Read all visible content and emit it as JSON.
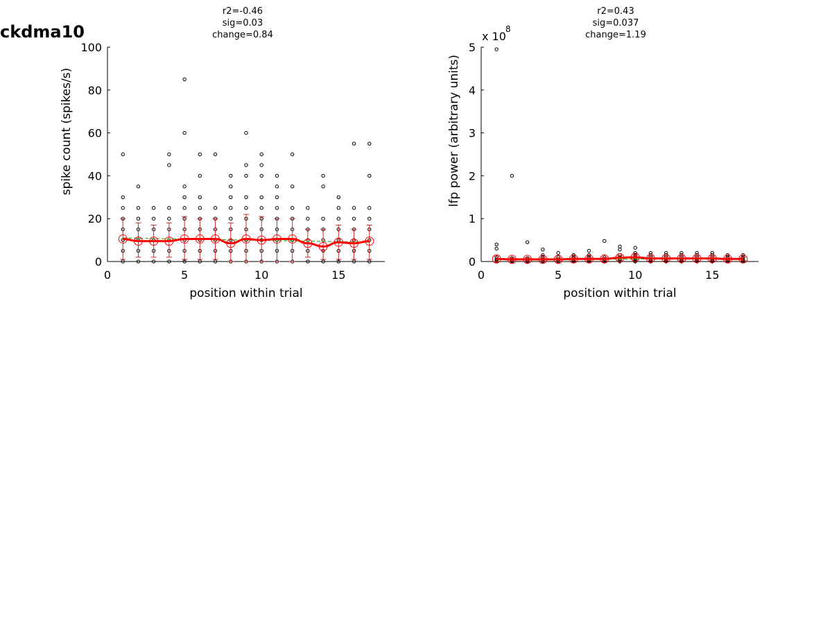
{
  "figure_title": "ckdma10",
  "colors": {
    "raw": "#000000",
    "mean": "#ff0000",
    "errbar": "#cc2a2a",
    "fit": "#22bb22",
    "axis": "#000000"
  },
  "chart_data": [
    {
      "type": "scatter",
      "title_lines": [
        "r2=-0.46",
        "sig=0.03",
        "change=0.84"
      ],
      "xlabel": "position within trial",
      "ylabel": "spike count (spikes/s)",
      "xlim": [
        0,
        18
      ],
      "ylim": [
        0,
        100
      ],
      "xticks": [
        0,
        5,
        10,
        15
      ],
      "yticks": [
        0,
        20,
        40,
        60,
        80,
        100
      ],
      "exponent_label": "",
      "grid": false,
      "raw_points": [
        [
          1,
          [
            0,
            5,
            10,
            15,
            20,
            25,
            30,
            50
          ]
        ],
        [
          2,
          [
            0,
            5,
            10,
            15,
            20,
            25,
            35
          ]
        ],
        [
          3,
          [
            0,
            5,
            10,
            15,
            20,
            25
          ]
        ],
        [
          4,
          [
            0,
            5,
            10,
            15,
            20,
            25,
            45,
            50
          ]
        ],
        [
          5,
          [
            0,
            5,
            10,
            15,
            20,
            25,
            30,
            35,
            60,
            85
          ]
        ],
        [
          6,
          [
            0,
            5,
            10,
            15,
            20,
            25,
            30,
            40,
            50
          ]
        ],
        [
          7,
          [
            0,
            5,
            10,
            15,
            20,
            25,
            50
          ]
        ],
        [
          8,
          [
            0,
            5,
            10,
            15,
            20,
            25,
            30,
            35,
            40
          ]
        ],
        [
          9,
          [
            0,
            5,
            10,
            15,
            20,
            25,
            30,
            40,
            45,
            60
          ]
        ],
        [
          10,
          [
            0,
            5,
            10,
            15,
            20,
            25,
            30,
            40,
            45,
            50
          ]
        ],
        [
          11,
          [
            0,
            5,
            10,
            15,
            20,
            25,
            30,
            35,
            40
          ]
        ],
        [
          12,
          [
            0,
            5,
            10,
            15,
            20,
            25,
            35,
            50
          ]
        ],
        [
          13,
          [
            0,
            5,
            10,
            15,
            20,
            25
          ]
        ],
        [
          14,
          [
            0,
            5,
            10,
            15,
            20,
            35,
            40
          ]
        ],
        [
          15,
          [
            0,
            5,
            10,
            15,
            20,
            25,
            30
          ]
        ],
        [
          16,
          [
            0,
            5,
            10,
            15,
            20,
            25,
            55
          ]
        ],
        [
          17,
          [
            0,
            5,
            10,
            15,
            20,
            25,
            40,
            55
          ]
        ]
      ],
      "mean": [
        10.5,
        9.5,
        9.5,
        9.5,
        10.5,
        10.5,
        10.5,
        8.5,
        10.5,
        10.0,
        10.5,
        10.5,
        8.5,
        7.0,
        9.0,
        8.5,
        9.5
      ],
      "err_upper": [
        20,
        18,
        17,
        18,
        21,
        20,
        20,
        18,
        22,
        21,
        20,
        20,
        15,
        15,
        17,
        15,
        17
      ],
      "err_lower": [
        1,
        2,
        2,
        2,
        1,
        1,
        1,
        0,
        0,
        0,
        0,
        0,
        2,
        1,
        1,
        1,
        1
      ],
      "fit": [
        [
          1,
          11.0
        ],
        [
          17,
          9.0
        ]
      ]
    },
    {
      "type": "scatter",
      "title_lines": [
        "r2=0.43",
        "sig=0.037",
        "change=1.19"
      ],
      "xlabel": "position within trial",
      "ylabel": "lfp power (arbitrary units)",
      "xlim": [
        0,
        18
      ],
      "ylim": [
        0,
        5
      ],
      "xticks": [
        0,
        5,
        10,
        15
      ],
      "yticks": [
        0,
        1,
        2,
        3,
        4,
        5
      ],
      "exponent_label": "x 10",
      "exponent_power": "8",
      "grid": false,
      "raw_points": [
        [
          1,
          [
            0.0,
            0.02,
            0.05,
            0.1,
            0.3,
            0.4,
            4.95
          ]
        ],
        [
          2,
          [
            0.0,
            0.02,
            0.05,
            0.08,
            2.0
          ]
        ],
        [
          3,
          [
            0.0,
            0.02,
            0.05,
            0.08,
            0.45
          ]
        ],
        [
          4,
          [
            0.0,
            0.02,
            0.05,
            0.1,
            0.15,
            0.28
          ]
        ],
        [
          5,
          [
            0.0,
            0.02,
            0.05,
            0.1,
            0.2
          ]
        ],
        [
          6,
          [
            0.0,
            0.02,
            0.05,
            0.1,
            0.15
          ]
        ],
        [
          7,
          [
            0.0,
            0.02,
            0.05,
            0.1,
            0.15,
            0.25
          ]
        ],
        [
          8,
          [
            0.0,
            0.02,
            0.05,
            0.1,
            0.48
          ]
        ],
        [
          9,
          [
            0.0,
            0.02,
            0.05,
            0.1,
            0.15,
            0.28,
            0.35
          ]
        ],
        [
          10,
          [
            0.0,
            0.02,
            0.05,
            0.1,
            0.15,
            0.2,
            0.32
          ]
        ],
        [
          11,
          [
            0.0,
            0.02,
            0.05,
            0.1,
            0.15,
            0.2
          ]
        ],
        [
          12,
          [
            0.0,
            0.02,
            0.05,
            0.1,
            0.15,
            0.2
          ]
        ],
        [
          13,
          [
            0.0,
            0.02,
            0.05,
            0.1,
            0.15,
            0.2
          ]
        ],
        [
          14,
          [
            0.0,
            0.02,
            0.05,
            0.1,
            0.15,
            0.2
          ]
        ],
        [
          15,
          [
            0.0,
            0.02,
            0.05,
            0.1,
            0.15,
            0.2
          ]
        ],
        [
          16,
          [
            0.0,
            0.02,
            0.05,
            0.1,
            0.15
          ]
        ],
        [
          17,
          [
            0.0,
            0.02,
            0.05,
            0.1,
            0.15
          ]
        ]
      ],
      "mean": [
        0.06,
        0.05,
        0.05,
        0.05,
        0.05,
        0.06,
        0.06,
        0.06,
        0.09,
        0.1,
        0.07,
        0.07,
        0.07,
        0.07,
        0.07,
        0.06,
        0.06
      ],
      "err_upper": [
        0.12,
        0.09,
        0.09,
        0.09,
        0.09,
        0.1,
        0.1,
        0.1,
        0.14,
        0.15,
        0.12,
        0.12,
        0.12,
        0.12,
        0.12,
        0.1,
        0.1
      ],
      "err_lower": [
        0.0,
        0.01,
        0.01,
        0.01,
        0.01,
        0.02,
        0.02,
        0.02,
        0.04,
        0.05,
        0.02,
        0.02,
        0.02,
        0.02,
        0.02,
        0.02,
        0.02
      ],
      "fit": [
        [
          1,
          0.04
        ],
        [
          17,
          0.07
        ]
      ]
    }
  ]
}
